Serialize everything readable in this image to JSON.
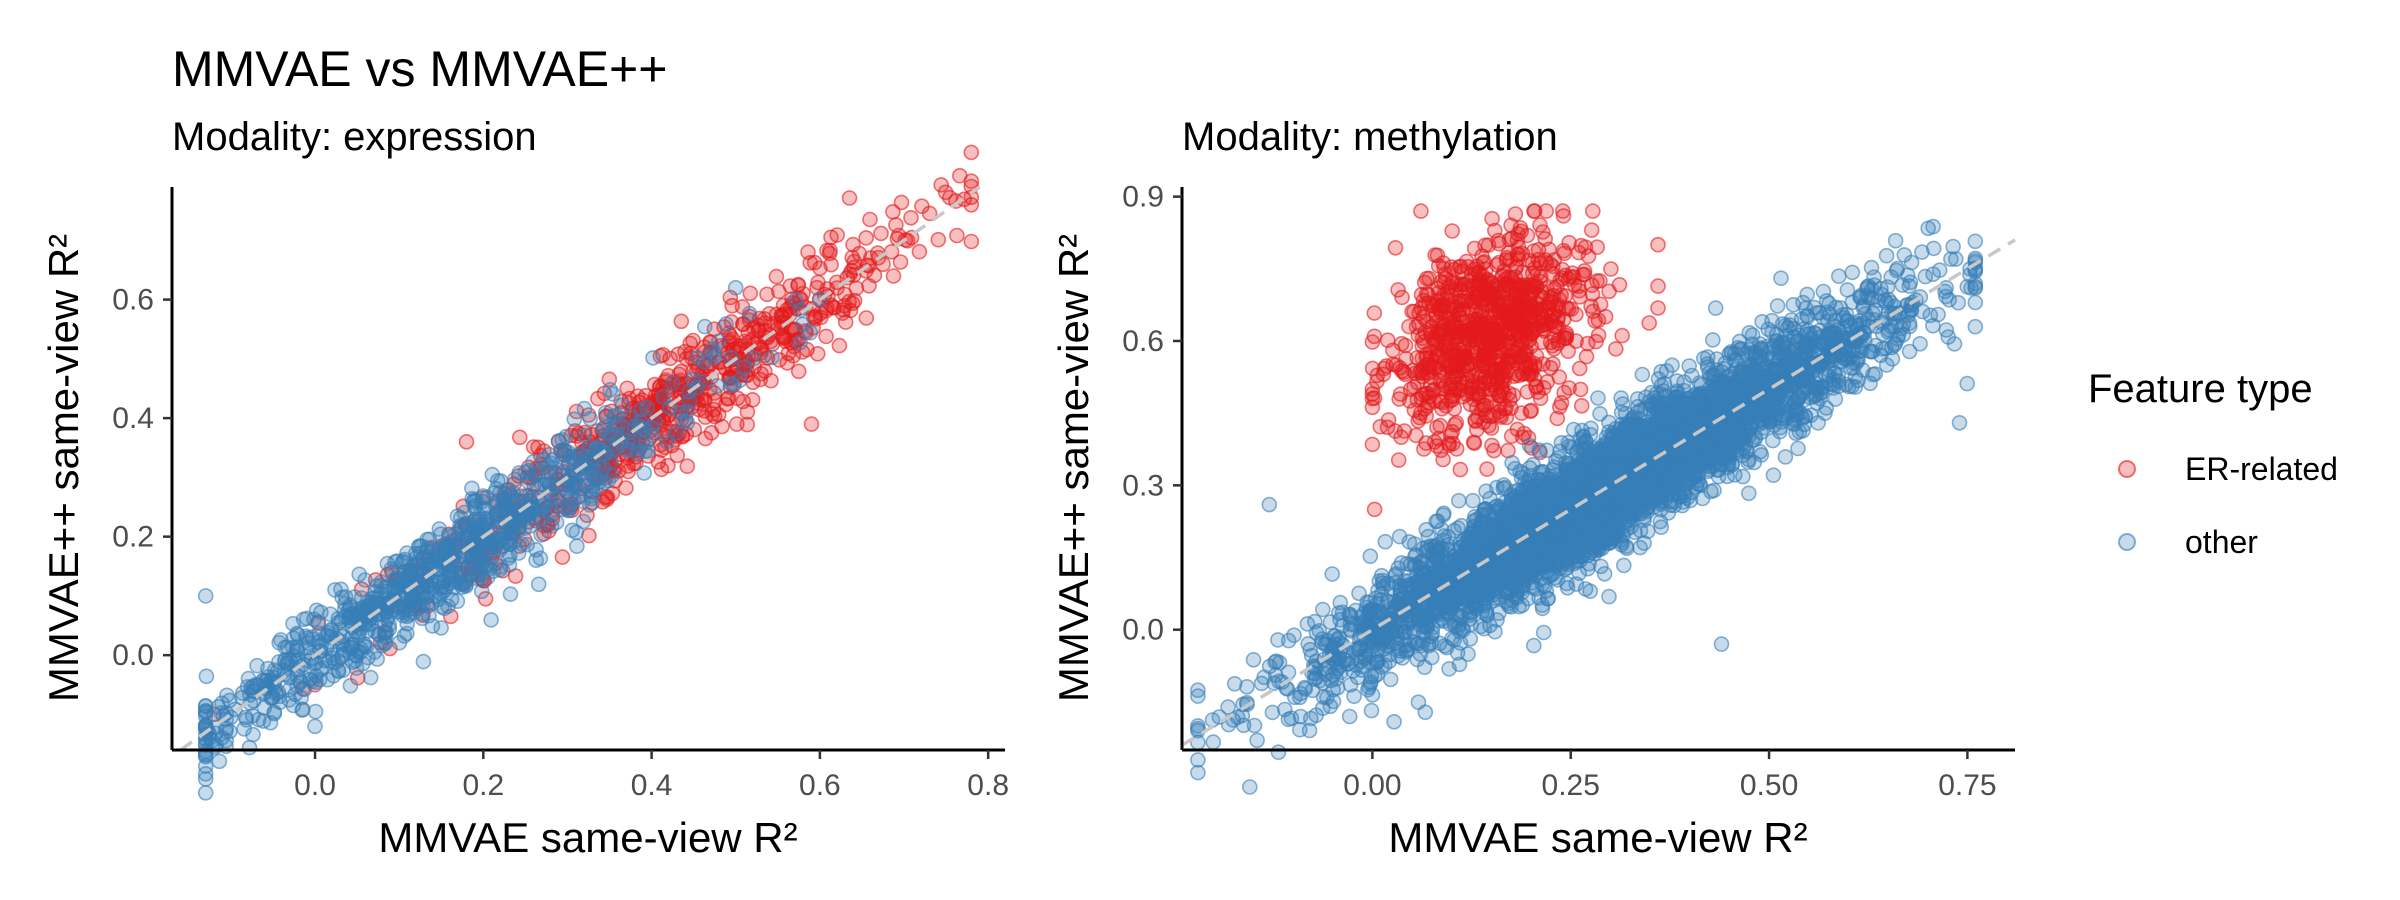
{
  "title": "MMVAE vs MMVAE++",
  "legend": {
    "title": "Feature type",
    "items": [
      {
        "label": "ER-related",
        "color": "#e41a1c"
      },
      {
        "label": "other",
        "color": "#377eb8"
      }
    ]
  },
  "chart_data": [
    {
      "type": "scatter",
      "subtitle": "Modality: expression",
      "xlabel": "MMVAE same-view R²",
      "ylabel": "MMVAE++ same-view R²",
      "xlim": [
        -0.17,
        0.82
      ],
      "ylim": [
        -0.16,
        0.79
      ],
      "xticks": [
        0.0,
        0.2,
        0.4,
        0.6,
        0.8
      ],
      "xtick_labels": [
        "0.0",
        "0.2",
        "0.4",
        "0.6",
        "0.8"
      ],
      "yticks": [
        0.0,
        0.2,
        0.4,
        0.6
      ],
      "ytick_labels": [
        "0.0",
        "0.2",
        "0.4",
        "0.6"
      ],
      "reference_line": "y = x (dashed)",
      "series": [
        {
          "name": "ER-related",
          "color": "#e41a1c",
          "n_points": 700,
          "x_range": [
            -0.12,
            0.78
          ],
          "x_center": 0.42,
          "x_spread": 0.16,
          "relation": "y ≈ x",
          "noise_sd": 0.045,
          "extremes": [
            [
              0.78,
              0.76
            ],
            [
              -0.12,
              -0.1
            ],
            [
              0.59,
              0.39
            ],
            [
              0.18,
              0.36
            ]
          ]
        },
        {
          "name": "other",
          "color": "#377eb8",
          "n_points": 900,
          "x_range": [
            -0.13,
            0.6
          ],
          "x_center": 0.15,
          "x_spread": 0.15,
          "relation": "y ≈ x",
          "noise_sd": 0.04,
          "extremes": [
            [
              -0.13,
              0.1
            ],
            [
              0.0,
              -0.12
            ],
            [
              0.5,
              0.62
            ]
          ]
        }
      ]
    },
    {
      "type": "scatter",
      "subtitle": "Modality: methylation",
      "xlabel": "MMVAE same-view R²",
      "ylabel": "MMVAE++ same-view R²",
      "xlim": [
        -0.24,
        0.81
      ],
      "ylim": [
        -0.25,
        0.92
      ],
      "xticks": [
        0.0,
        0.25,
        0.5,
        0.75
      ],
      "xtick_labels": [
        "0.00",
        "0.25",
        "0.50",
        "0.75"
      ],
      "yticks": [
        0.0,
        0.3,
        0.6,
        0.9
      ],
      "ytick_labels": [
        "0.0",
        "0.3",
        "0.6",
        "0.9"
      ],
      "reference_line": "y = x (dashed)",
      "series": [
        {
          "name": "ER-related",
          "color": "#e41a1c",
          "n_points": 900,
          "x_range": [
            0.0,
            0.36
          ],
          "x_center": 0.15,
          "x_spread": 0.06,
          "y_range": [
            0.1,
            0.87
          ],
          "y_center": 0.62,
          "y_spread": 0.1,
          "extremes": [
            [
              0.24,
              0.87
            ],
            [
              0.36,
              0.8
            ],
            [
              0.0,
              0.5
            ],
            [
              0.08,
              0.15
            ]
          ]
        },
        {
          "name": "other",
          "color": "#377eb8",
          "n_points": 4500,
          "x_range": [
            -0.22,
            0.76
          ],
          "x_center": 0.3,
          "x_spread": 0.17,
          "relation": "y ≈ x",
          "noise_sd": 0.06,
          "extremes": [
            [
              0.76,
              0.68
            ],
            [
              -0.22,
              -0.2
            ],
            [
              0.74,
              0.43
            ],
            [
              -0.13,
              0.26
            ],
            [
              0.44,
              -0.03
            ]
          ]
        }
      ]
    }
  ]
}
